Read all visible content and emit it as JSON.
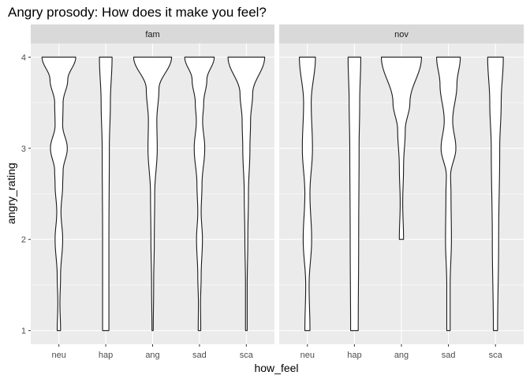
{
  "chart_data": {
    "type": "violin",
    "title": "Angry prosody: How does it make you feel?",
    "xlabel": "how_feel",
    "ylabel": "angry_rating",
    "categories": [
      "neu",
      "hap",
      "ang",
      "sad",
      "sca"
    ],
    "y_ticks": [
      1,
      2,
      3,
      4
    ],
    "ylim": [
      1,
      4
    ],
    "grid": true,
    "colors": {
      "panel_bg": "#ebebeb",
      "strip_bg": "#d9d9d9",
      "grid": "#ffffff",
      "violin_fill": "#ffffff",
      "violin_stroke": "#1a1a1a",
      "text": "#1a1a1a",
      "tick_text": "#4d4d4d"
    },
    "facets": [
      {
        "label": "fam",
        "violins": [
          {
            "category": "neu",
            "min": 1,
            "max": 4,
            "profile": [
              [
                1,
                0.08
              ],
              [
                1.3,
                0.05
              ],
              [
                1.6,
                0.08
              ],
              [
                2,
                0.18
              ],
              [
                2.3,
                0.1
              ],
              [
                2.6,
                0.18
              ],
              [
                2.75,
                0.2
              ],
              [
                3,
                0.4
              ],
              [
                3.25,
                0.18
              ],
              [
                3.5,
                0.2
              ],
              [
                3.75,
                0.42
              ],
              [
                4,
                0.8
              ]
            ]
          },
          {
            "category": "hap",
            "min": 1,
            "max": 4,
            "profile": [
              [
                1,
                0.15
              ],
              [
                2,
                0.15
              ],
              [
                3,
                0.17
              ],
              [
                3.5,
                0.22
              ],
              [
                4,
                0.3
              ]
            ]
          },
          {
            "category": "ang",
            "min": 1,
            "max": 4,
            "profile": [
              [
                1,
                0.03
              ],
              [
                1.5,
                0.05
              ],
              [
                2,
                0.08
              ],
              [
                2.5,
                0.1
              ],
              [
                3,
                0.22
              ],
              [
                3.3,
                0.2
              ],
              [
                3.65,
                0.3
              ],
              [
                4,
                0.9
              ]
            ]
          },
          {
            "category": "sad",
            "min": 1,
            "max": 4,
            "profile": [
              [
                1,
                0.06
              ],
              [
                1.3,
                0.05
              ],
              [
                1.6,
                0.08
              ],
              [
                2,
                0.14
              ],
              [
                2.3,
                0.08
              ],
              [
                2.6,
                0.12
              ],
              [
                3,
                0.25
              ],
              [
                3.3,
                0.15
              ],
              [
                3.5,
                0.2
              ],
              [
                3.75,
                0.35
              ],
              [
                4,
                0.7
              ]
            ]
          },
          {
            "category": "sca",
            "min": 1,
            "max": 4,
            "profile": [
              [
                1,
                0.04
              ],
              [
                1.5,
                0.04
              ],
              [
                2,
                0.07
              ],
              [
                2.5,
                0.1
              ],
              [
                3,
                0.17
              ],
              [
                3.3,
                0.2
              ],
              [
                3.6,
                0.3
              ],
              [
                4,
                0.87
              ]
            ]
          }
        ]
      },
      {
        "label": "nov",
        "violins": [
          {
            "category": "neu",
            "min": 1,
            "max": 4,
            "profile": [
              [
                1,
                0.12
              ],
              [
                1.5,
                0.08
              ],
              [
                2,
                0.2
              ],
              [
                2.5,
                0.12
              ],
              [
                3,
                0.24
              ],
              [
                3.5,
                0.18
              ],
              [
                4,
                0.38
              ]
            ]
          },
          {
            "category": "hap",
            "min": 1,
            "max": 4,
            "profile": [
              [
                1,
                0.18
              ],
              [
                2,
                0.2
              ],
              [
                3,
                0.22
              ],
              [
                3.5,
                0.25
              ],
              [
                4,
                0.3
              ]
            ]
          },
          {
            "category": "ang",
            "min": 2,
            "max": 4,
            "profile": [
              [
                2,
                0.1
              ],
              [
                2.4,
                0.06
              ],
              [
                2.8,
                0.1
              ],
              [
                3.2,
                0.18
              ],
              [
                3.5,
                0.4
              ],
              [
                4,
                0.95
              ]
            ]
          },
          {
            "category": "sad",
            "min": 1,
            "max": 4,
            "profile": [
              [
                1,
                0.08
              ],
              [
                1.5,
                0.08
              ],
              [
                2,
                0.14
              ],
              [
                2.5,
                0.12
              ],
              [
                2.7,
                0.1
              ],
              [
                3,
                0.35
              ],
              [
                3.3,
                0.2
              ],
              [
                3.7,
                0.4
              ],
              [
                4,
                0.56
              ]
            ]
          },
          {
            "category": "sca",
            "min": 1,
            "max": 4,
            "profile": [
              [
                1,
                0.1
              ],
              [
                2,
                0.15
              ],
              [
                3,
                0.2
              ],
              [
                3.5,
                0.27
              ],
              [
                4,
                0.37
              ]
            ]
          }
        ]
      }
    ]
  }
}
